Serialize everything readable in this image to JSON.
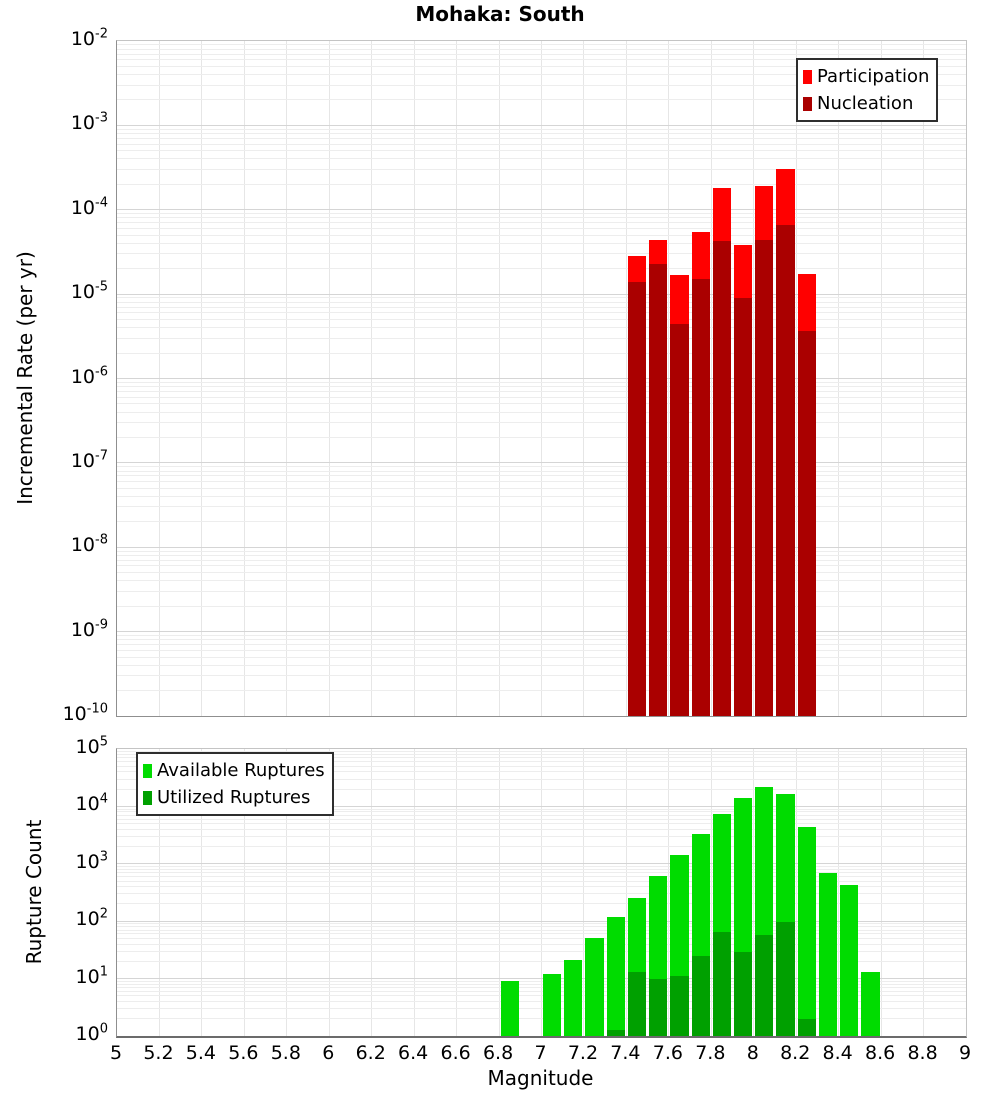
{
  "page_title": "Mohaka: South",
  "chart_data": [
    {
      "type": "bar",
      "title": "Mohaka: South",
      "ylabel": "Incremental Rate (per yr)",
      "xlabel": "Magnitude",
      "y_scale": "log",
      "y_exp_range": [
        -10,
        -2
      ],
      "x_range": [
        5,
        9
      ],
      "x_tick_step": 0.2,
      "bin_width": 0.1,
      "grid": true,
      "legend_position": "top-right",
      "categories": [
        7.45,
        7.55,
        7.65,
        7.75,
        7.85,
        7.95,
        8.05,
        8.15,
        8.25
      ],
      "series": [
        {
          "name": "Participation",
          "color": "#ff0000",
          "values": [
            2.8e-05,
            4.4e-05,
            1.7e-05,
            5.5e-05,
            0.00018,
            3.8e-05,
            0.00019,
            0.0003,
            1.75e-05
          ]
        },
        {
          "name": "Nucleation",
          "color": "#aa0000",
          "values": [
            1.4e-05,
            2.3e-05,
            4.4e-06,
            1.5e-05,
            4.3e-05,
            9e-06,
            4.4e-05,
            6.6e-05,
            3.7e-06
          ]
        }
      ]
    },
    {
      "type": "bar",
      "title": "",
      "ylabel": "Rupture Count",
      "xlabel": "Magnitude",
      "y_scale": "log",
      "y_exp_range": [
        0,
        5
      ],
      "x_range": [
        5,
        9
      ],
      "x_tick_step": 0.2,
      "bin_width": 0.1,
      "grid": true,
      "legend_position": "top-left",
      "categories": [
        6.85,
        7.05,
        7.15,
        7.25,
        7.35,
        7.45,
        7.55,
        7.65,
        7.75,
        7.85,
        7.95,
        8.05,
        8.15,
        8.25,
        8.35,
        8.45,
        8.55
      ],
      "series": [
        {
          "name": "Available Ruptures",
          "color": "#00dc00",
          "values": [
            9,
            12,
            21,
            50,
            120,
            250,
            610,
            1400,
            3350,
            7500,
            14000,
            22000,
            16500,
            4400,
            700,
            420,
            13
          ]
        },
        {
          "name": "Utilized Ruptures",
          "color": "#00a000",
          "values": [
            null,
            null,
            null,
            null,
            1,
            13,
            10,
            11,
            25,
            65,
            29,
            57,
            95,
            2,
            null,
            null,
            null
          ]
        }
      ]
    }
  ]
}
